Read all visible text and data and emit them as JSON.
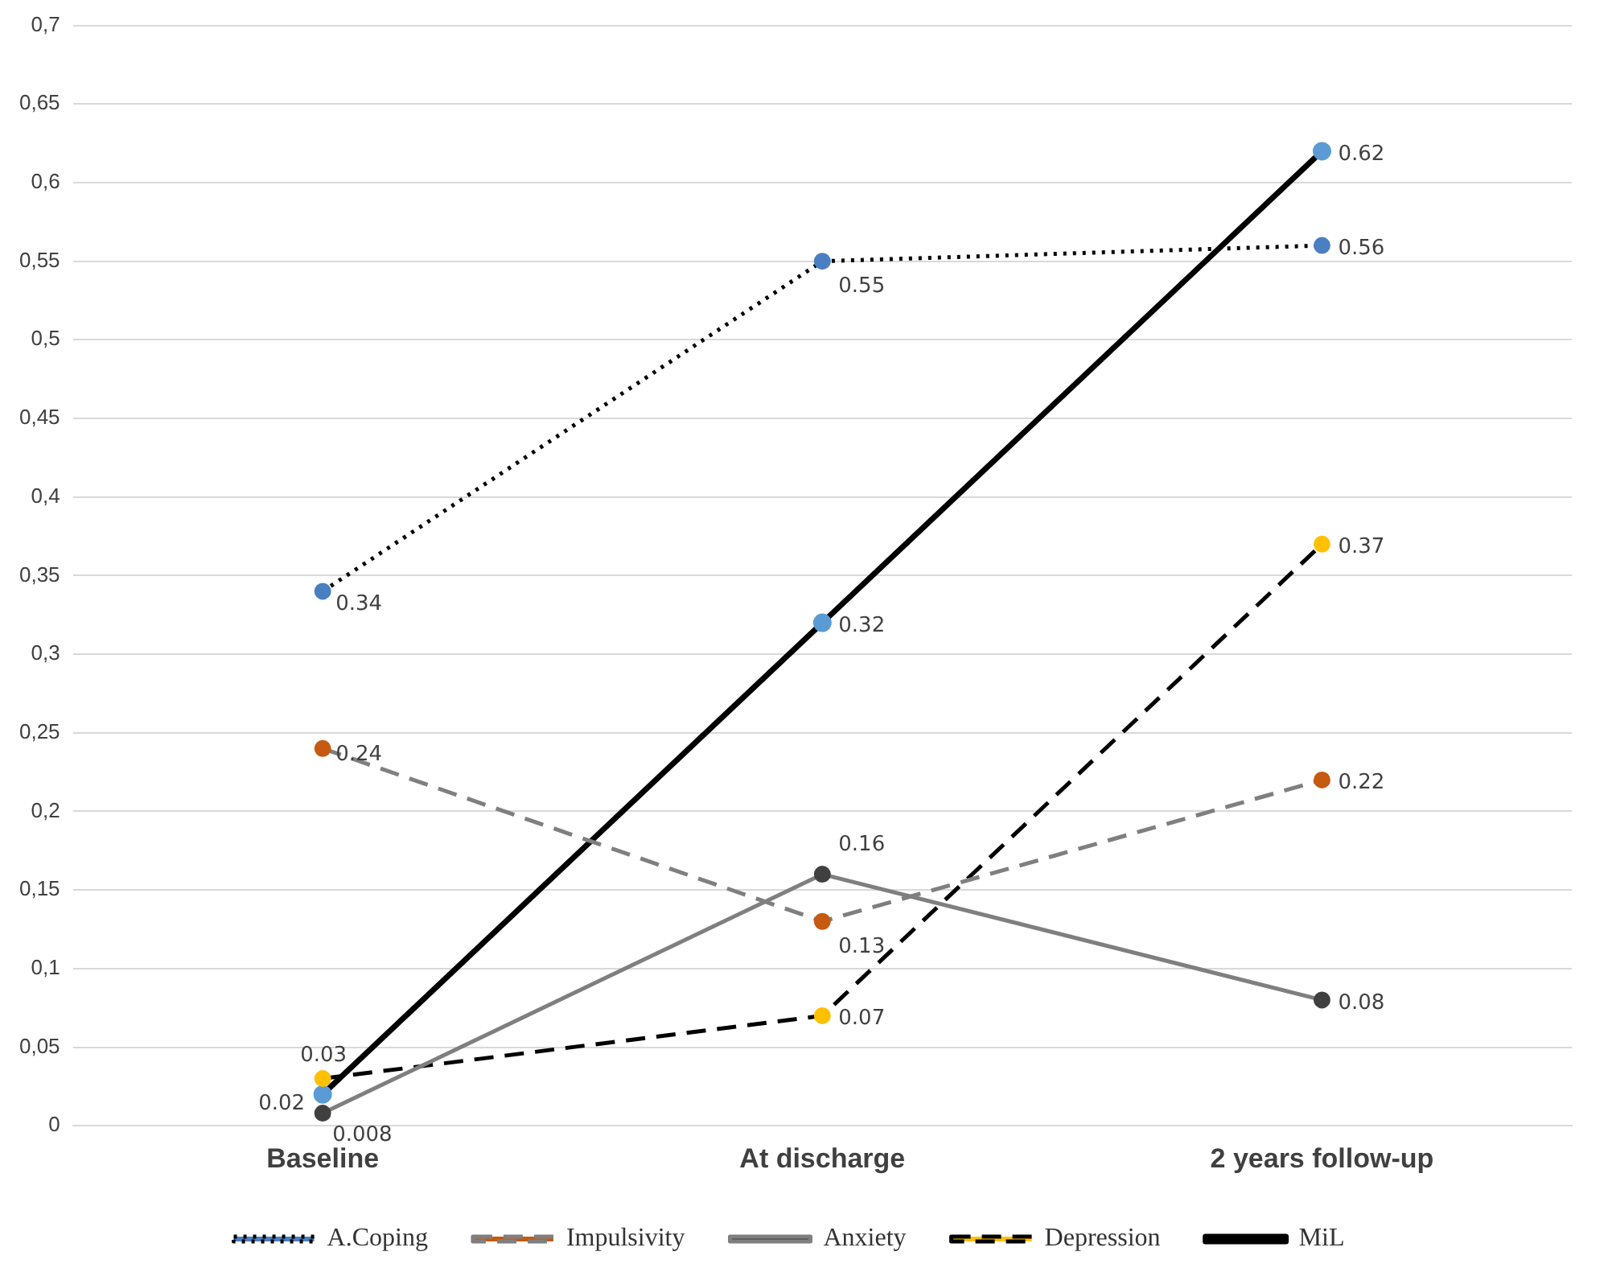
{
  "chart_data": {
    "type": "line",
    "categories": [
      "Baseline",
      "At discharge",
      "2 years follow-up"
    ],
    "ylim": [
      0,
      0.7
    ],
    "yticks": [
      0,
      {
        "value": 0.05,
        "label": "0,05"
      },
      {
        "value": 0.1,
        "label": "0,1"
      },
      {
        "value": 0.15,
        "label": "0,15"
      },
      {
        "value": 0.2,
        "label": "0,2"
      },
      {
        "value": 0.25,
        "label": "0,25"
      },
      {
        "value": 0.3,
        "label": "0,3"
      },
      {
        "value": 0.35,
        "label": "0,35"
      },
      {
        "value": 0.4,
        "label": "0,4"
      },
      {
        "value": 0.45,
        "label": "0,45"
      },
      {
        "value": 0.5,
        "label": "0,5"
      },
      {
        "value": 0.55,
        "label": "0,55"
      },
      {
        "value": 0.6,
        "label": "0,6"
      },
      {
        "value": 0.65,
        "label": "0,65"
      },
      {
        "value": 0.7,
        "label": "0,7"
      }
    ],
    "grid": "y",
    "legend": "bottom",
    "marker": "circle",
    "data_labels": true,
    "series": [
      {
        "name": "A.Coping",
        "color": "#000000",
        "colors": [
          "#4a7fc1",
          "#4a7fc1",
          "#4a7fc1"
        ],
        "line_style": "dotted",
        "values": [
          0.34,
          0.55,
          0.56
        ]
      },
      {
        "name": "Impulsivity",
        "color": "#7f7f7f",
        "colors": [
          "#c55a11",
          "#c55a11",
          "#c55a11"
        ],
        "line_style": "dashed",
        "values": [
          0.24,
          0.13,
          0.22
        ]
      },
      {
        "name": "Anxiety",
        "color": "#7f7f7f",
        "colors": [
          "#404040",
          "#404040",
          "#404040"
        ],
        "line_style": "solid",
        "values": [
          0.008,
          0.16,
          0.08
        ]
      },
      {
        "name": "Depression",
        "color": "#000000",
        "colors": [
          "#ffc000",
          "#ffc000",
          "#ffc000"
        ],
        "line_style": "dashed",
        "values": [
          0.03,
          0.07,
          0.37
        ]
      },
      {
        "name": "MiL",
        "color": "#000000",
        "colors": [
          "#5b9bd5",
          "#5b9bd5",
          "#5b9bd5"
        ],
        "line_style": "solid",
        "values": [
          0.02,
          0.32,
          0.62
        ]
      }
    ]
  }
}
